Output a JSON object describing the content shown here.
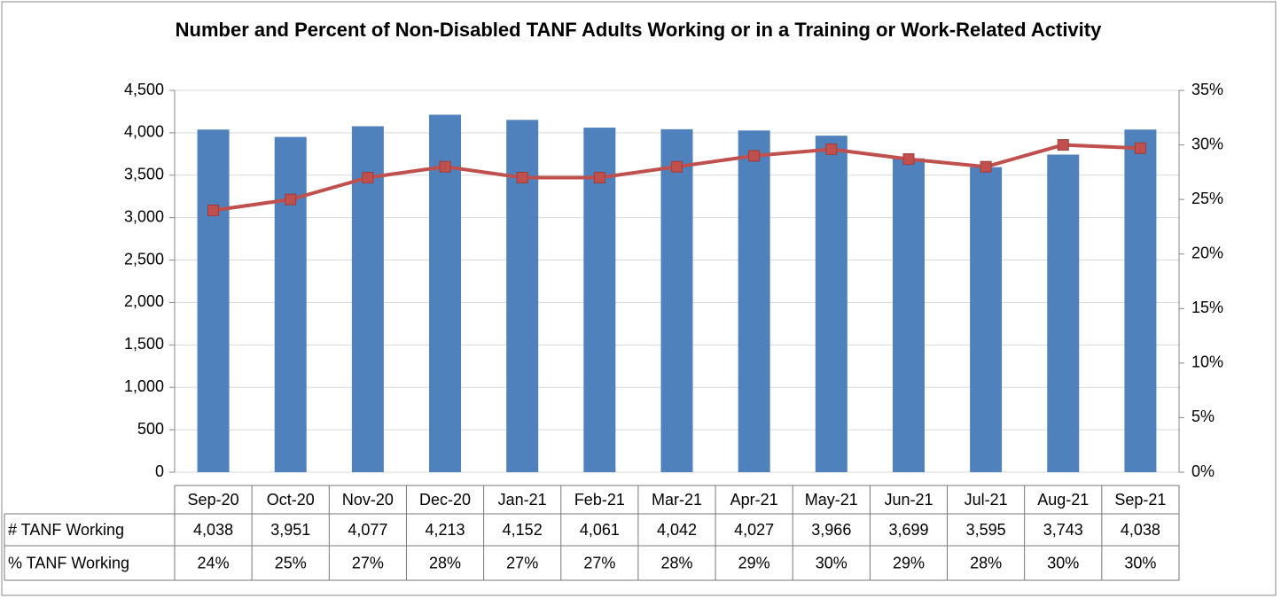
{
  "chart_data": {
    "type": "bar",
    "title": "Number and Percent of Non-Disabled TANF Adults Working or in a Training or Work-Related Activity",
    "categories": [
      "Sep-20",
      "Oct-20",
      "Nov-20",
      "Dec-20",
      "Jan-21",
      "Feb-21",
      "Mar-21",
      "Apr-21",
      "May-21",
      "Jun-21",
      "Jul-21",
      "Aug-21",
      "Sep-21"
    ],
    "series": [
      {
        "name": "# TANF Working",
        "type": "bar",
        "color": "#4f81bd",
        "values": [
          4038,
          3951,
          4077,
          4213,
          4152,
          4061,
          4042,
          4027,
          3966,
          3699,
          3595,
          3743,
          4038
        ],
        "value_labels": [
          "4,038",
          "3,951",
          "4,077",
          "4,213",
          "4,152",
          "4,061",
          "4,042",
          "4,027",
          "3,966",
          "3,699",
          "3,595",
          "3,743",
          "4,038"
        ]
      },
      {
        "name": "% TANF Working",
        "type": "line",
        "axis": "y2",
        "color": "#c0504d",
        "values": [
          24,
          25,
          27,
          28,
          27,
          27,
          28,
          29,
          29.6,
          28.7,
          28,
          30,
          29.7
        ],
        "value_labels": [
          "24%",
          "25%",
          "27%",
          "28%",
          "27%",
          "27%",
          "28%",
          "29%",
          "30%",
          "29%",
          "28%",
          "30%",
          "30%"
        ]
      }
    ],
    "ylim": [
      0,
      4500
    ],
    "yticks": [
      0,
      500,
      {
        "value": 1000,
        "label": "1,000"
      },
      {
        "value": 1500,
        "label": "1,500"
      },
      {
        "value": 2000,
        "label": "2,000"
      },
      {
        "value": 2500,
        "label": "2,500"
      },
      {
        "value": 3000,
        "label": "3,000"
      },
      {
        "value": 3500,
        "label": "3,500"
      },
      {
        "value": 4000,
        "label": "4,000"
      },
      {
        "value": 4500,
        "label": "4,500"
      }
    ],
    "y2lim": [
      0,
      35
    ],
    "y2ticks": [
      {
        "value": 0,
        "label": "0%"
      },
      {
        "value": 5,
        "label": "5%"
      },
      {
        "value": 10,
        "label": "10%"
      },
      {
        "value": 15,
        "label": "15%"
      },
      {
        "value": 20,
        "label": "20%"
      },
      {
        "value": 25,
        "label": "25%"
      },
      {
        "value": 30,
        "label": "30%"
      },
      {
        "value": 35,
        "label": "35%"
      }
    ],
    "grid": true
  }
}
